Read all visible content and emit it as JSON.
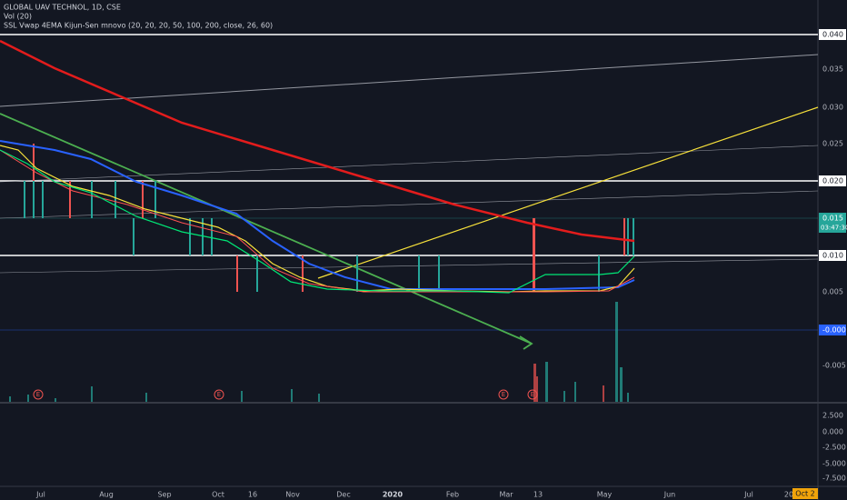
{
  "header": {
    "symbol": "GLOBAL UAV TECHNOL, 1D, CSE",
    "volume": "Vol (20)",
    "indicator": "SSL Vwap 4EMA Kijun-Sen mnovo (20, 20, 20, 50, 100, 200, close, 26, 60)"
  },
  "price_axis": {
    "labels": [
      "0.040",
      "0.035",
      "0.030",
      "0.025",
      "0.020",
      "0.015",
      "0.010",
      "0.005",
      "-0.000",
      "-0.005"
    ],
    "countdown": "03:47:30"
  },
  "indicator_axis": {
    "labels": [
      "2.500",
      "0.000",
      "-2.500",
      "-5.000",
      "-7.500"
    ]
  },
  "time_axis": {
    "labels": [
      "Jul",
      "Aug",
      "Sep",
      "Oct",
      "16",
      "Nov",
      "Dec",
      "2020",
      "Feb",
      "Mar",
      "13",
      "May",
      "Jun",
      "Jul",
      "20"
    ],
    "cursor": "Oct 2"
  },
  "events": [
    "E",
    "E",
    "E",
    "E"
  ]
}
